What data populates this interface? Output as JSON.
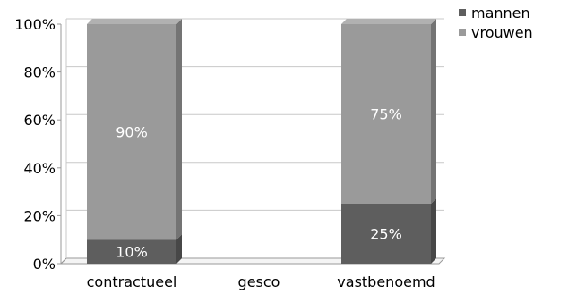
{
  "chart_data": {
    "type": "bar",
    "stacked": true,
    "percent": true,
    "categories": [
      "contractueel",
      "gesco",
      "vastbenoemd"
    ],
    "series": [
      {
        "name": "mannen",
        "values": [
          10,
          0,
          25
        ],
        "labels": [
          "10%",
          "",
          "25%"
        ],
        "color": "#5e5e5e"
      },
      {
        "name": "vrouwen",
        "values": [
          90,
          0,
          75
        ],
        "labels": [
          "90%",
          "",
          "75%"
        ],
        "color": "#9a9a9a"
      }
    ],
    "y_ticks": [
      "0%",
      "20%",
      "40%",
      "60%",
      "80%",
      "100%"
    ],
    "ylim": [
      0,
      100
    ],
    "grid": true,
    "legend": "top-right",
    "title": "",
    "xlabel": "",
    "ylabel": ""
  }
}
